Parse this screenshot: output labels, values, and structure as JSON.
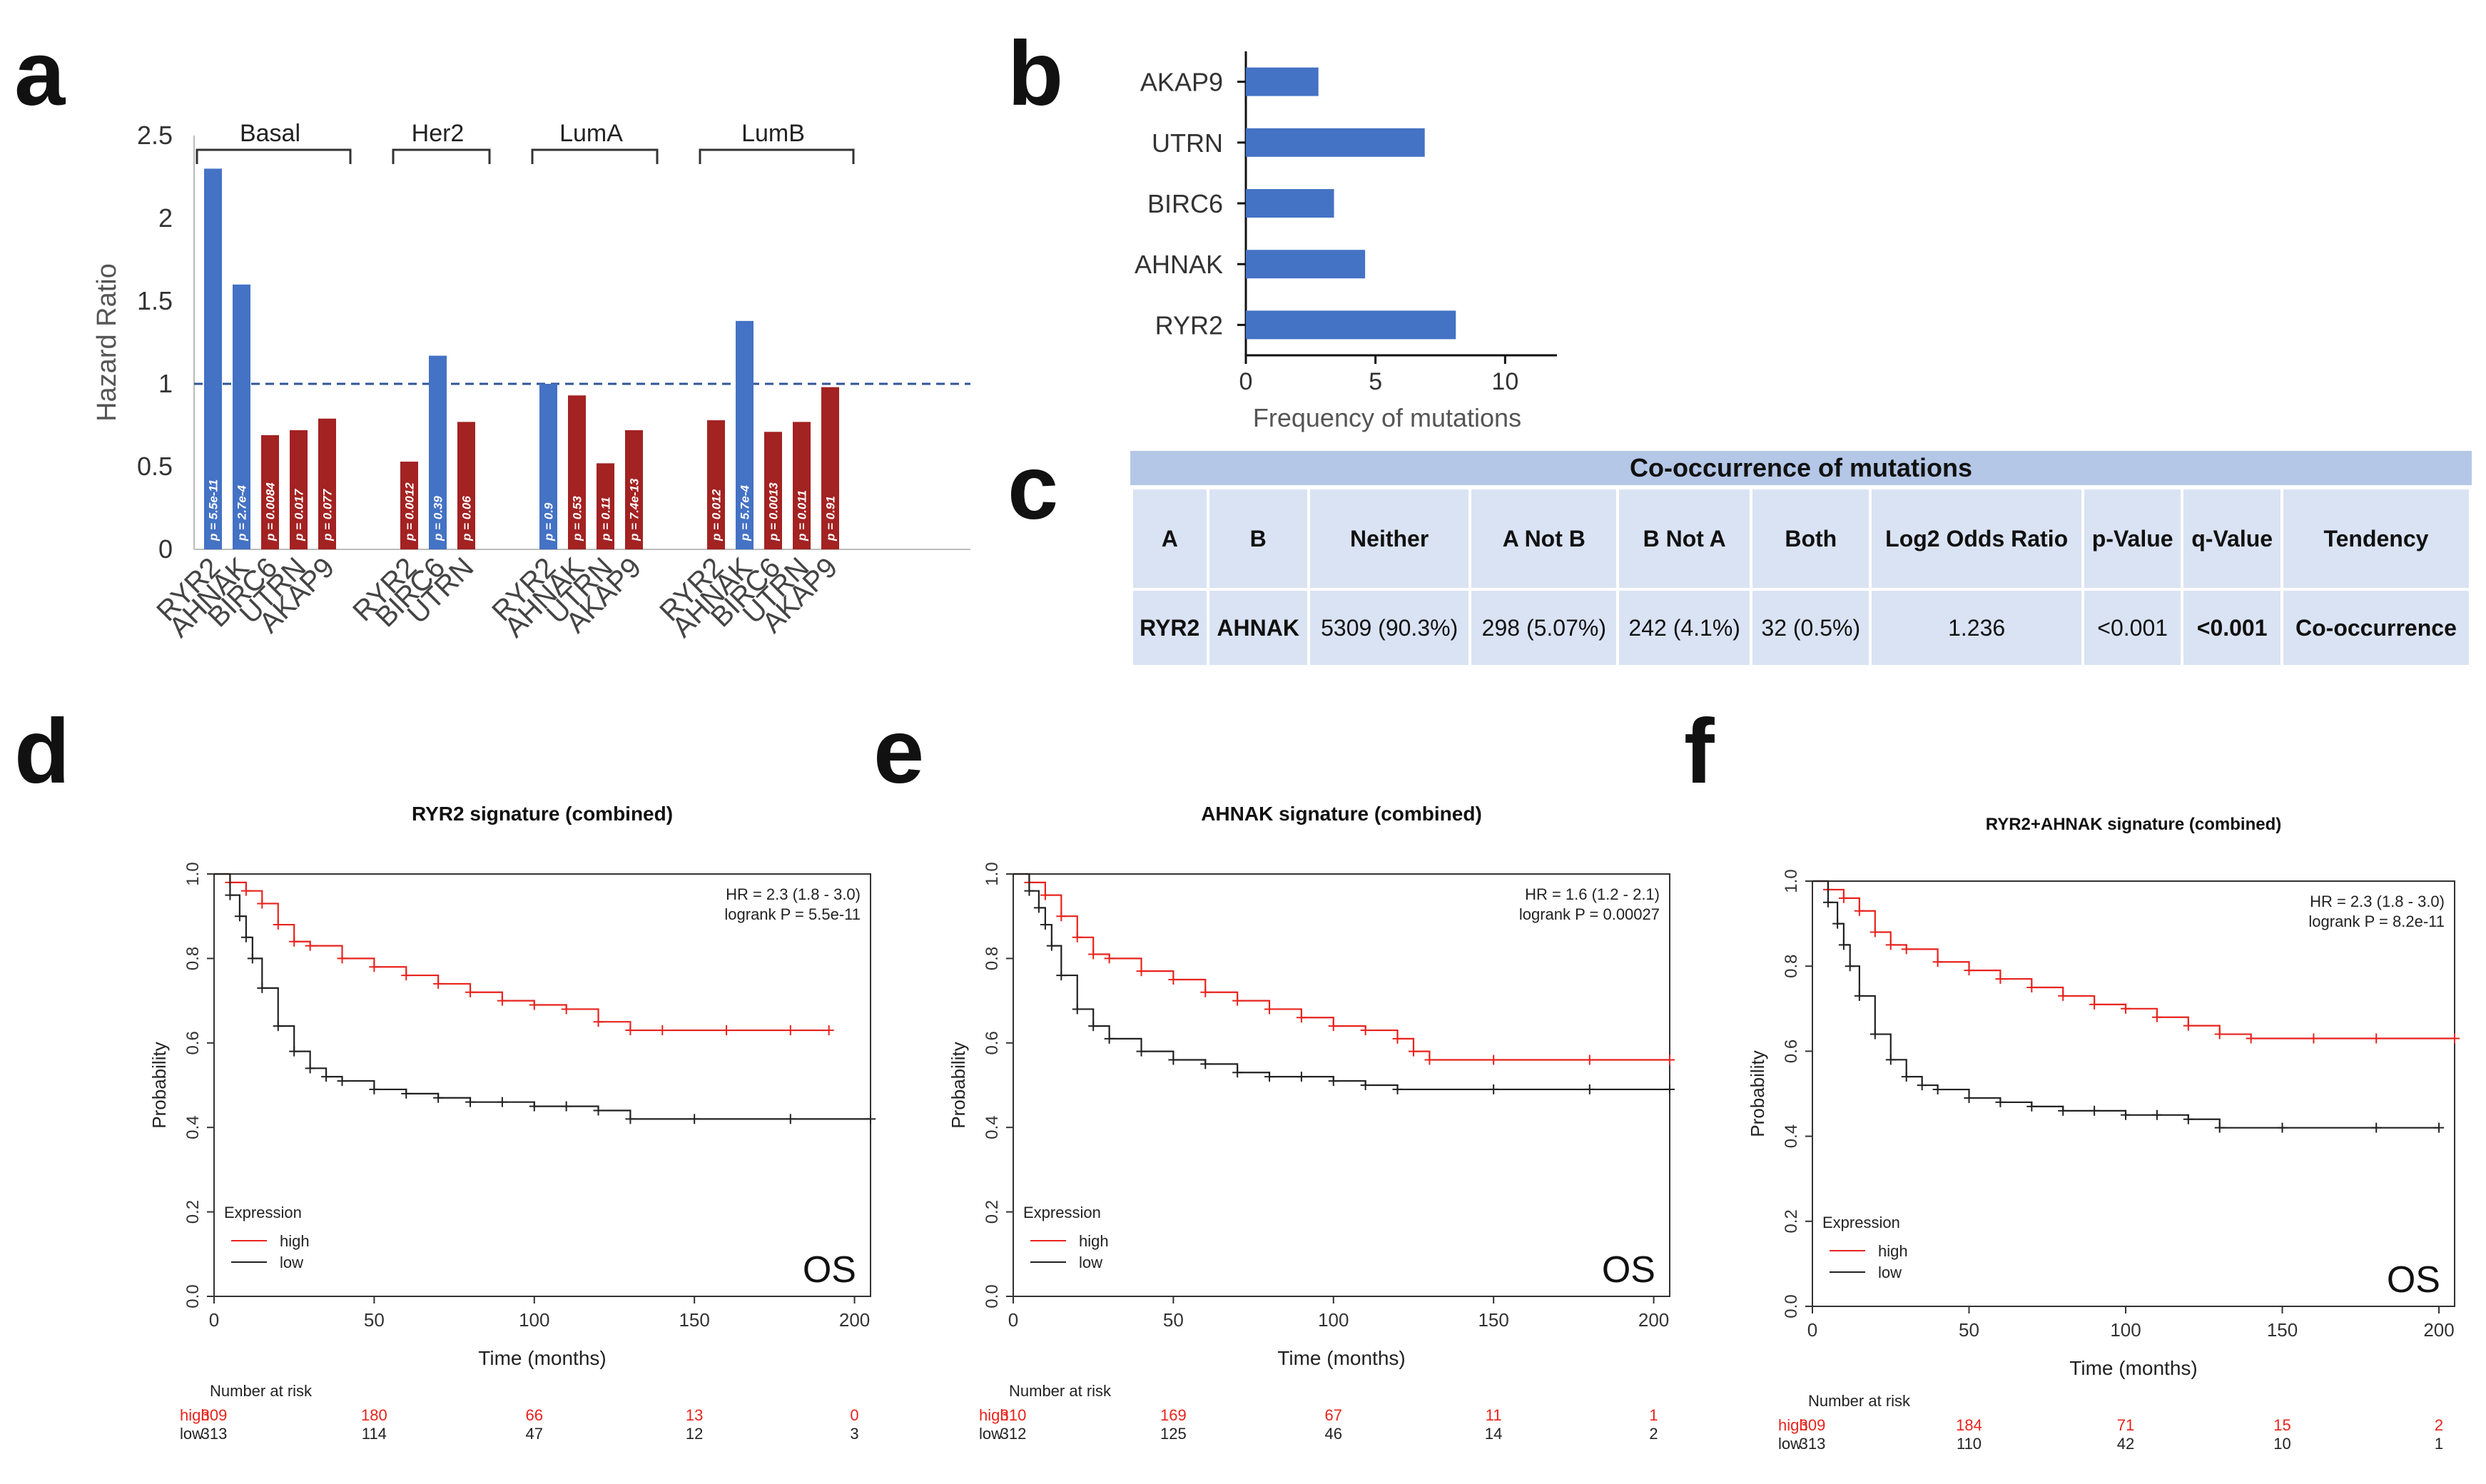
{
  "panels": {
    "a": "a",
    "b": "b",
    "c": "c",
    "d": "d",
    "e": "e",
    "f": "f"
  },
  "chart_data": [
    {
      "id": "a",
      "type": "bar",
      "ylabel": "Hazard Ratio",
      "ylim": [
        0,
        2.5
      ],
      "yticks": [
        "0",
        "0.5",
        "1",
        "1.5",
        "2",
        "2.5"
      ],
      "yticks_values": [
        0,
        0.5,
        1,
        1.5,
        2,
        2.5
      ],
      "reference_line": 1,
      "groups": [
        {
          "name": "Basal",
          "bars": [
            {
              "gene": "RYR2",
              "value": 2.3,
              "p": "p = 5.5e-11",
              "color": "#4472c4"
            },
            {
              "gene": "AHNAK",
              "value": 1.6,
              "p": "p = 2.7e-4",
              "color": "#4472c4"
            },
            {
              "gene": "BIRC6",
              "value": 0.69,
              "p": "p = 0.0084",
              "color": "#a32222"
            },
            {
              "gene": "UTRN",
              "value": 0.72,
              "p": "p = 0.017",
              "color": "#a32222"
            },
            {
              "gene": "AKAP9",
              "value": 0.79,
              "p": "p = 0.077",
              "color": "#a32222"
            }
          ]
        },
        {
          "name": "Her2",
          "bars": [
            {
              "gene": "RYR2",
              "value": 0.53,
              "p": "p = 0.0012",
              "color": "#a32222"
            },
            {
              "gene": "BIRC6",
              "value": 1.17,
              "p": "p = 0.39",
              "color": "#4472c4"
            },
            {
              "gene": "UTRN",
              "value": 0.77,
              "p": "p = 0.06",
              "color": "#a32222"
            }
          ]
        },
        {
          "name": "LumA",
          "bars": [
            {
              "gene": "RYR2",
              "value": 1.0,
              "p": "p = 0.9",
              "color": "#4472c4"
            },
            {
              "gene": "AHNAK",
              "value": 0.93,
              "p": "p = 0.53",
              "color": "#a32222"
            },
            {
              "gene": "UTRN",
              "value": 0.52,
              "p": "p = 0.11",
              "color": "#a32222"
            },
            {
              "gene": "AKAP9",
              "value": 0.72,
              "p": "p = 7.4e-13",
              "color": "#a32222"
            }
          ]
        },
        {
          "name": "LumB",
          "bars": [
            {
              "gene": "RYR2",
              "value": 0.78,
              "p": "p = 0.012",
              "color": "#a32222"
            },
            {
              "gene": "AHNAK",
              "value": 1.38,
              "p": "p = 5.7e-4",
              "color": "#4472c4"
            },
            {
              "gene": "BIRC6",
              "value": 0.71,
              "p": "p = 0.0013",
              "color": "#a32222"
            },
            {
              "gene": "UTRN",
              "value": 0.77,
              "p": "p = 0.011",
              "color": "#a32222"
            },
            {
              "gene": "AKAP9",
              "value": 0.98,
              "p": "p = 0.91",
              "color": "#a32222"
            }
          ]
        }
      ]
    },
    {
      "id": "b",
      "type": "bar",
      "orientation": "horizontal",
      "xlabel": "Frequency of mutations",
      "xlim": [
        0,
        12
      ],
      "xticks": [
        "0",
        "5",
        "10"
      ],
      "xticks_values": [
        0,
        5,
        10
      ],
      "categories": [
        "AKAP9",
        "UTRN",
        "BIRC6",
        "AHNAK",
        "RYR2"
      ],
      "values": [
        2.8,
        6.9,
        3.4,
        4.6,
        8.1
      ],
      "color": "#4472c4"
    },
    {
      "id": "d",
      "type": "line",
      "title": "RYR2 signature (combined)",
      "xlabel": "Time (months)",
      "ylabel": "Probability",
      "xlim": [
        0,
        205
      ],
      "ylim": [
        0,
        1
      ],
      "xticks": [
        "0",
        "50",
        "100",
        "150",
        "200"
      ],
      "xticks_values": [
        0,
        50,
        100,
        150,
        200
      ],
      "yticks": [
        "0.0",
        "0.2",
        "0.4",
        "0.6",
        "0.8",
        "1.0"
      ],
      "yticks_values": [
        0,
        0.2,
        0.4,
        0.6,
        0.8,
        1.0
      ],
      "hr_text": "HR = 2.3 (1.8 - 3.0)",
      "logrank_text": "logrank P = 5.5e-11",
      "legend_title": "Expression",
      "endpoint": "OS",
      "series": [
        {
          "name": "high",
          "color": "#e8231d",
          "x": [
            0,
            5,
            10,
            15,
            20,
            25,
            30,
            40,
            50,
            60,
            70,
            80,
            90,
            100,
            110,
            120,
            130,
            140,
            160,
            180,
            192
          ],
          "y": [
            1.0,
            0.98,
            0.96,
            0.93,
            0.88,
            0.84,
            0.83,
            0.8,
            0.78,
            0.76,
            0.74,
            0.72,
            0.7,
            0.69,
            0.68,
            0.65,
            0.63,
            0.63,
            0.63,
            0.63,
            0.63
          ]
        },
        {
          "name": "low",
          "color": "#222222",
          "x": [
            0,
            5,
            8,
            10,
            12,
            15,
            20,
            25,
            30,
            35,
            40,
            50,
            60,
            70,
            80,
            90,
            100,
            110,
            120,
            130,
            150,
            180,
            205
          ],
          "y": [
            1.0,
            0.95,
            0.9,
            0.85,
            0.8,
            0.73,
            0.64,
            0.58,
            0.54,
            0.52,
            0.51,
            0.49,
            0.48,
            0.47,
            0.46,
            0.46,
            0.45,
            0.45,
            0.44,
            0.42,
            0.42,
            0.42,
            0.42
          ]
        }
      ],
      "risk": {
        "header": "Number at risk",
        "high_label": "high",
        "low_label": "low",
        "high": [
          "309",
          "180",
          "66",
          "13",
          "0"
        ],
        "low": [
          "313",
          "114",
          "47",
          "12",
          "3"
        ]
      }
    },
    {
      "id": "e",
      "type": "line",
      "title": "AHNAK signature (combined)",
      "xlabel": "Time (months)",
      "ylabel": "Probability",
      "xlim": [
        0,
        205
      ],
      "ylim": [
        0,
        1
      ],
      "xticks": [
        "0",
        "50",
        "100",
        "150",
        "200"
      ],
      "xticks_values": [
        0,
        50,
        100,
        150,
        200
      ],
      "yticks": [
        "0.0",
        "0.2",
        "0.4",
        "0.6",
        "0.8",
        "1.0"
      ],
      "yticks_values": [
        0,
        0.2,
        0.4,
        0.6,
        0.8,
        1.0
      ],
      "hr_text": "HR = 1.6 (1.2 - 2.1)",
      "logrank_text": "logrank P = 0.00027",
      "legend_title": "Expression",
      "endpoint": "OS",
      "series": [
        {
          "name": "high",
          "color": "#e8231d",
          "x": [
            0,
            5,
            10,
            15,
            20,
            25,
            30,
            40,
            50,
            60,
            70,
            80,
            90,
            100,
            110,
            120,
            125,
            130,
            150,
            180,
            205
          ],
          "y": [
            1.0,
            0.98,
            0.95,
            0.9,
            0.85,
            0.81,
            0.8,
            0.77,
            0.75,
            0.72,
            0.7,
            0.68,
            0.66,
            0.64,
            0.63,
            0.61,
            0.58,
            0.56,
            0.56,
            0.56,
            0.56
          ]
        },
        {
          "name": "low",
          "color": "#222222",
          "x": [
            0,
            5,
            8,
            10,
            12,
            15,
            20,
            25,
            30,
            40,
            50,
            60,
            70,
            80,
            90,
            100,
            110,
            120,
            150,
            180,
            205
          ],
          "y": [
            1.0,
            0.96,
            0.92,
            0.88,
            0.83,
            0.76,
            0.68,
            0.64,
            0.61,
            0.58,
            0.56,
            0.55,
            0.53,
            0.52,
            0.52,
            0.51,
            0.5,
            0.49,
            0.49,
            0.49,
            0.49
          ]
        }
      ],
      "risk": {
        "header": "Number at risk",
        "high_label": "high",
        "low_label": "low",
        "high": [
          "310",
          "169",
          "67",
          "11",
          "1"
        ],
        "low": [
          "312",
          "125",
          "46",
          "14",
          "2"
        ]
      }
    },
    {
      "id": "f",
      "type": "line",
      "title": "RYR2+AHNAK signature (combined)",
      "xlabel": "Time (months)",
      "ylabel": "Probability",
      "xlim": [
        0,
        205
      ],
      "ylim": [
        0,
        1
      ],
      "xticks": [
        "0",
        "50",
        "100",
        "150",
        "200"
      ],
      "xticks_values": [
        0,
        50,
        100,
        150,
        200
      ],
      "yticks": [
        "0.0",
        "0.2",
        "0.4",
        "0.6",
        "0.8",
        "1.0"
      ],
      "yticks_values": [
        0,
        0.2,
        0.4,
        0.6,
        0.8,
        1.0
      ],
      "hr_text": "HR = 2.3 (1.8 - 3.0)",
      "logrank_text": "logrank P = 8.2e-11",
      "legend_title": "Expression",
      "endpoint": "OS",
      "series": [
        {
          "name": "high",
          "color": "#e8231d",
          "x": [
            0,
            5,
            10,
            15,
            20,
            25,
            30,
            40,
            50,
            60,
            70,
            80,
            90,
            100,
            110,
            120,
            130,
            140,
            160,
            180,
            205
          ],
          "y": [
            1.0,
            0.98,
            0.96,
            0.93,
            0.88,
            0.85,
            0.84,
            0.81,
            0.79,
            0.77,
            0.75,
            0.73,
            0.71,
            0.7,
            0.68,
            0.66,
            0.64,
            0.63,
            0.63,
            0.63,
            0.63
          ]
        },
        {
          "name": "low",
          "color": "#222222",
          "x": [
            0,
            5,
            8,
            10,
            12,
            15,
            20,
            25,
            30,
            35,
            40,
            50,
            60,
            70,
            80,
            90,
            100,
            110,
            120,
            130,
            150,
            180,
            200
          ],
          "y": [
            1.0,
            0.95,
            0.9,
            0.85,
            0.8,
            0.73,
            0.64,
            0.58,
            0.54,
            0.52,
            0.51,
            0.49,
            0.48,
            0.47,
            0.46,
            0.46,
            0.45,
            0.45,
            0.44,
            0.42,
            0.42,
            0.42,
            0.42
          ]
        }
      ],
      "risk": {
        "header": "Number at risk",
        "high_label": "high",
        "low_label": "low",
        "high": [
          "309",
          "184",
          "71",
          "15",
          "2"
        ],
        "low": [
          "313",
          "110",
          "42",
          "10",
          "1"
        ]
      }
    }
  ],
  "table_c": {
    "title": "Co-occurrence of mutations",
    "headers": [
      "A",
      "B",
      "Neither",
      "A Not B",
      "B Not A",
      "Both",
      "Log2 Odds Ratio",
      "p-Value",
      "q-Value",
      "Tendency"
    ],
    "row": [
      "RYR2",
      "AHNAK",
      "5309 (90.3%)",
      "298 (5.07%)",
      "242 (4.1%)",
      "32 (0.5%)",
      "1.236",
      "<0.001",
      "<0.001",
      "Co-occurrence"
    ]
  }
}
